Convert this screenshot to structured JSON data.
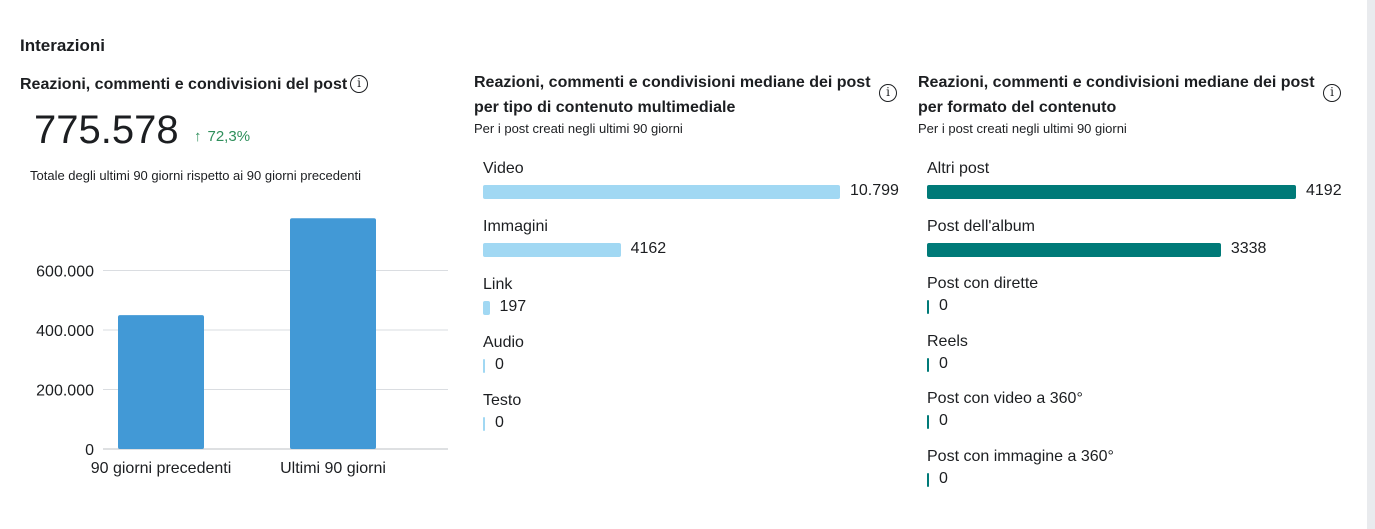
{
  "section": {
    "title": "Interazioni"
  },
  "card1": {
    "title": "Reazioni, commenti e condivisioni del post",
    "info_icon": "info-icon",
    "total_value": "775.578",
    "delta_text": "72,3%",
    "delta_icon": "arrow-up-icon",
    "delta_color": "#2f8f5b",
    "caption": "Totale degli ultimi 90 giorni rispetto ai 90 giorni precedenti"
  },
  "card2": {
    "title_line1": "Reazioni, commenti e condivisioni mediane dei post",
    "title_line2": "per tipo di contenuto multimediale",
    "subtitle": "Per i post creati negli ultimi 90 giorni",
    "info_icon": "info-icon"
  },
  "card3": {
    "title_line1": "Reazioni, commenti e condivisioni mediane dei post",
    "title_line2": "per formato del contenuto",
    "subtitle": "Per i post creati negli ultimi 90 giorni",
    "info_icon": "info-icon"
  },
  "chart_data": [
    {
      "type": "bar",
      "categories": [
        "90 giorni precedenti",
        "Ultimi 90 giorni"
      ],
      "values": [
        450000,
        775578
      ],
      "ylim": [
        0,
        800000
      ],
      "yticks": [
        0,
        200000,
        400000,
        600000
      ],
      "ytick_labels": [
        "0",
        "200.000",
        "400.000",
        "600.000"
      ],
      "grid": true,
      "color": "#4299d6"
    },
    {
      "type": "bar",
      "orientation": "horizontal",
      "categories": [
        "Video",
        "Immagini",
        "Link",
        "Audio",
        "Testo"
      ],
      "values": [
        10799,
        4162,
        197,
        0,
        0
      ],
      "value_labels": [
        "10.799",
        "4162",
        "197",
        "0",
        "0"
      ],
      "color": "#a1d8f3"
    },
    {
      "type": "bar",
      "orientation": "horizontal",
      "categories": [
        "Altri post",
        "Post dell'album",
        "Post con dirette",
        "Reels",
        "Post con video a 360°",
        "Post con immagine a 360°"
      ],
      "values": [
        4192,
        3338,
        0,
        0,
        0,
        0
      ],
      "value_labels": [
        "4192",
        "3338",
        "0",
        "0",
        "0",
        "0"
      ],
      "color": "#007a78"
    }
  ]
}
